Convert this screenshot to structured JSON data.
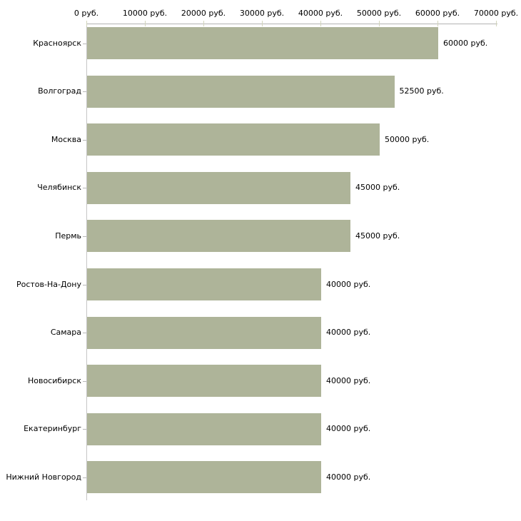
{
  "chart_data": {
    "type": "bar",
    "orientation": "horizontal",
    "title": "",
    "xlabel": "",
    "ylabel": "",
    "xlim": [
      0,
      70000
    ],
    "grid": false,
    "legend": null,
    "categories": [
      "Красноярск",
      "Волгоград",
      "Москва",
      "Челябинск",
      "Пермь",
      "Ростов-На-Дону",
      "Самара",
      "Новосибирск",
      "Екатеринбург",
      "Нижний Новгород"
    ],
    "values": [
      60000,
      52500,
      50000,
      45000,
      45000,
      40000,
      40000,
      40000,
      40000,
      40000
    ],
    "value_labels": [
      "60000 руб.",
      "52500 руб.",
      "50000 руб.",
      "45000 руб.",
      "45000 руб.",
      "40000 руб.",
      "40000 руб.",
      "40000 руб.",
      "40000 руб.",
      "40000 руб."
    ],
    "x_ticks": [
      0,
      10000,
      20000,
      30000,
      40000,
      50000,
      60000,
      70000
    ],
    "x_tick_labels": [
      "0 руб.",
      "10000 руб.",
      "20000 руб.",
      "30000 руб.",
      "40000 руб.",
      "50000 руб.",
      "60000 руб.",
      "70000 руб."
    ],
    "colors": {
      "bar": "#aeb499",
      "axis": "#b3b3b3",
      "axis_vertical": "#c6c6c6",
      "xtick": "#d2d5bc",
      "ytick": "#b8b8b8",
      "text": "#000000",
      "background": "#ffffff"
    }
  }
}
